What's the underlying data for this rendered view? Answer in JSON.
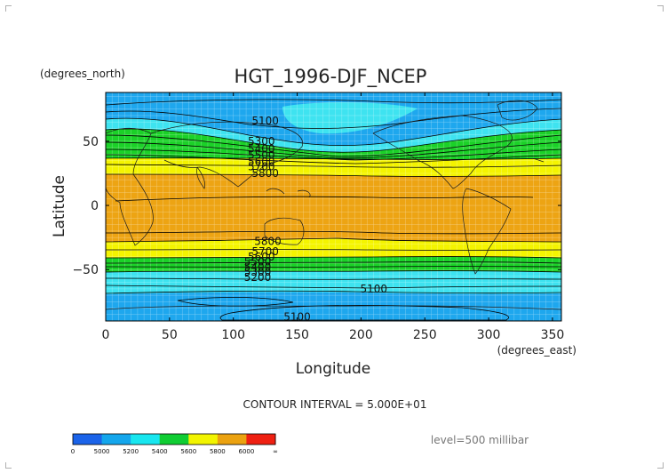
{
  "figure": {
    "title": "HGT_1996-DJF_NCEP",
    "y_units": "(degrees_north)",
    "x_units": "(degrees_east)",
    "xlabel": "Longitude",
    "ylabel": "Latitude",
    "contour_interval_text": "CONTOUR INTERVAL = 5.000E+01",
    "level_text": "level=500 millibar"
  },
  "map": {
    "lon_range": [
      0,
      357
    ],
    "lat_range": [
      -90,
      88
    ],
    "x_ticks": [
      "0",
      "50",
      "100",
      "150",
      "200",
      "250",
      "300",
      "350"
    ],
    "x_tick_values": [
      0,
      50,
      100,
      150,
      200,
      250,
      300,
      350
    ],
    "y_ticks": [
      "50",
      "0",
      "−50"
    ],
    "y_tick_values": [
      50,
      0,
      -50
    ],
    "grid": true,
    "contour_labels": [
      {
        "text": "5100",
        "lon": 125,
        "lat": 66
      },
      {
        "text": "5300",
        "lon": 122,
        "lat": 50
      },
      {
        "text": "5400",
        "lon": 122,
        "lat": 44
      },
      {
        "text": "5500",
        "lon": 122,
        "lat": 39
      },
      {
        "text": "5600",
        "lon": 122,
        "lat": 34
      },
      {
        "text": "5700",
        "lon": 122,
        "lat": 30
      },
      {
        "text": "5800",
        "lon": 125,
        "lat": 25
      },
      {
        "text": "5800",
        "lon": 127,
        "lat": -28
      },
      {
        "text": "5700",
        "lon": 125,
        "lat": -36
      },
      {
        "text": "5600",
        "lon": 122,
        "lat": -40
      },
      {
        "text": "5500",
        "lon": 119,
        "lat": -44
      },
      {
        "text": "5400",
        "lon": 119,
        "lat": -48
      },
      {
        "text": "5300",
        "lon": 119,
        "lat": -52
      },
      {
        "text": "5200",
        "lon": 119,
        "lat": -56
      },
      {
        "text": "5100",
        "lon": 210,
        "lat": -65
      },
      {
        "text": "5100",
        "lon": 150,
        "lat": -87
      }
    ]
  },
  "colorbar": {
    "labels": [
      "0",
      "5000",
      "5200",
      "5400",
      "5600",
      "5800",
      "6000",
      "∞"
    ],
    "colors": [
      "#1b63e9",
      "#14a6ec",
      "#18e6ef",
      "#10cd33",
      "#f2f400",
      "#eba210",
      "#ef2012"
    ]
  },
  "colors": {
    "band_blue": "#1ea7ee",
    "band_cyan": "#3ee3f0",
    "band_green": "#1bd128",
    "band_yellow": "#f4f400",
    "band_orange": "#eda413",
    "grid": "#ffffff",
    "contour": "#000000"
  }
}
